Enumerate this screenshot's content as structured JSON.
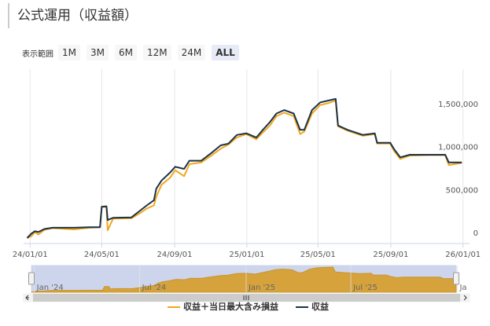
{
  "header": {
    "title": "公式運用（収益額）"
  },
  "range_selector": {
    "label": "表示範囲",
    "buttons": [
      "1M",
      "3M",
      "6M",
      "12M",
      "24M",
      "ALL"
    ],
    "selected": "ALL"
  },
  "chart_data": {
    "type": "line",
    "x": [
      "2023-12-27",
      "2024-01-03",
      "2024-01-09",
      "2024-01-15",
      "2024-01-25",
      "2024-02-08",
      "2024-03-15",
      "2024-04-10",
      "2024-04-28",
      "2024-05-01",
      "2024-05-09",
      "2024-05-11",
      "2024-05-20",
      "2024-06-20",
      "2024-07-05",
      "2024-07-15",
      "2024-07-28",
      "2024-08-01",
      "2024-08-10",
      "2024-08-24",
      "2024-09-02",
      "2024-09-17",
      "2024-09-26",
      "2024-10-16",
      "2024-11-02",
      "2024-11-18",
      "2024-12-01",
      "2024-12-15",
      "2024-12-31",
      "2025-01-17",
      "2025-01-28",
      "2025-02-09",
      "2025-02-20",
      "2025-03-05",
      "2025-03-21",
      "2025-04-01",
      "2025-04-08",
      "2025-04-21",
      "2025-05-05",
      "2025-05-18",
      "2025-05-31",
      "2025-06-04",
      "2025-06-20",
      "2025-07-16",
      "2025-08-05",
      "2025-08-09",
      "2025-08-31",
      "2025-09-07",
      "2025-09-17",
      "2025-10-03",
      "2025-11-05",
      "2025-12-02",
      "2025-12-08",
      "2025-12-30"
    ],
    "series": [
      {
        "name": "収益＋当日最大含み損益",
        "color": "#f0a81e",
        "values": [
          0,
          20000,
          70000,
          40000,
          95000,
          115000,
          100000,
          120000,
          125000,
          365000,
          360000,
          90000,
          225000,
          230000,
          290000,
          340000,
          380000,
          480000,
          620000,
          700000,
          790000,
          720000,
          860000,
          880000,
          960000,
          1040000,
          1090000,
          1170000,
          1210000,
          1150000,
          1230000,
          1310000,
          1420000,
          1460000,
          1420000,
          1210000,
          1240000,
          1450000,
          1550000,
          1570000,
          1600000,
          1300000,
          1250000,
          1190000,
          1210000,
          1100000,
          1100000,
          1010000,
          920000,
          960000,
          965000,
          965000,
          850000,
          875000
        ]
      },
      {
        "name": "収益",
        "color": "#1c3246",
        "values": [
          0,
          50000,
          80000,
          70000,
          105000,
          120000,
          120000,
          125000,
          125000,
          365000,
          370000,
          210000,
          235000,
          240000,
          320000,
          375000,
          440000,
          575000,
          670000,
          760000,
          830000,
          805000,
          900000,
          900000,
          990000,
          1080000,
          1100000,
          1200000,
          1220000,
          1170000,
          1260000,
          1350000,
          1450000,
          1490000,
          1450000,
          1260000,
          1260000,
          1490000,
          1580000,
          1600000,
          1620000,
          1310000,
          1260000,
          1200000,
          1220000,
          1110000,
          1110000,
          1030000,
          940000,
          970000,
          970000,
          970000,
          880000,
          880000
        ]
      }
    ],
    "xlim": [
      "2023-12-21",
      "2026-01-12"
    ],
    "xticks": [
      {
        "value": "2024-01-01",
        "label": "24/01/01"
      },
      {
        "value": "2024-05-01",
        "label": "24/05/01"
      },
      {
        "value": "2024-09-01",
        "label": "24/09/01"
      },
      {
        "value": "2025-01-01",
        "label": "25/01/01"
      },
      {
        "value": "2025-05-01",
        "label": "25/05/01"
      },
      {
        "value": "2025-09-01",
        "label": "25/09/01"
      },
      {
        "value": "2026-01-01",
        "label": "26/01/01"
      }
    ],
    "ylim": [
      -64000,
      1967000
    ],
    "yticks": [
      0,
      {
        "value": 500000,
        "label": "500,000"
      },
      {
        "value": 1000000,
        "label": "1,000,000"
      },
      {
        "value": 1500000,
        "label": "1,500,000"
      }
    ],
    "xgrid": true,
    "legend": "bottom",
    "navigator": {
      "xticks": [
        {
          "value": "2024-01-01",
          "label": "Jan '24"
        },
        {
          "value": "2024-07-01",
          "label": "Jul '24"
        },
        {
          "value": "2025-01-01",
          "label": "Jan '25"
        },
        {
          "value": "2025-07-01",
          "label": "Jul '25"
        },
        {
          "value": "2026-01-01",
          "label": "Ja"
        }
      ]
    }
  }
}
